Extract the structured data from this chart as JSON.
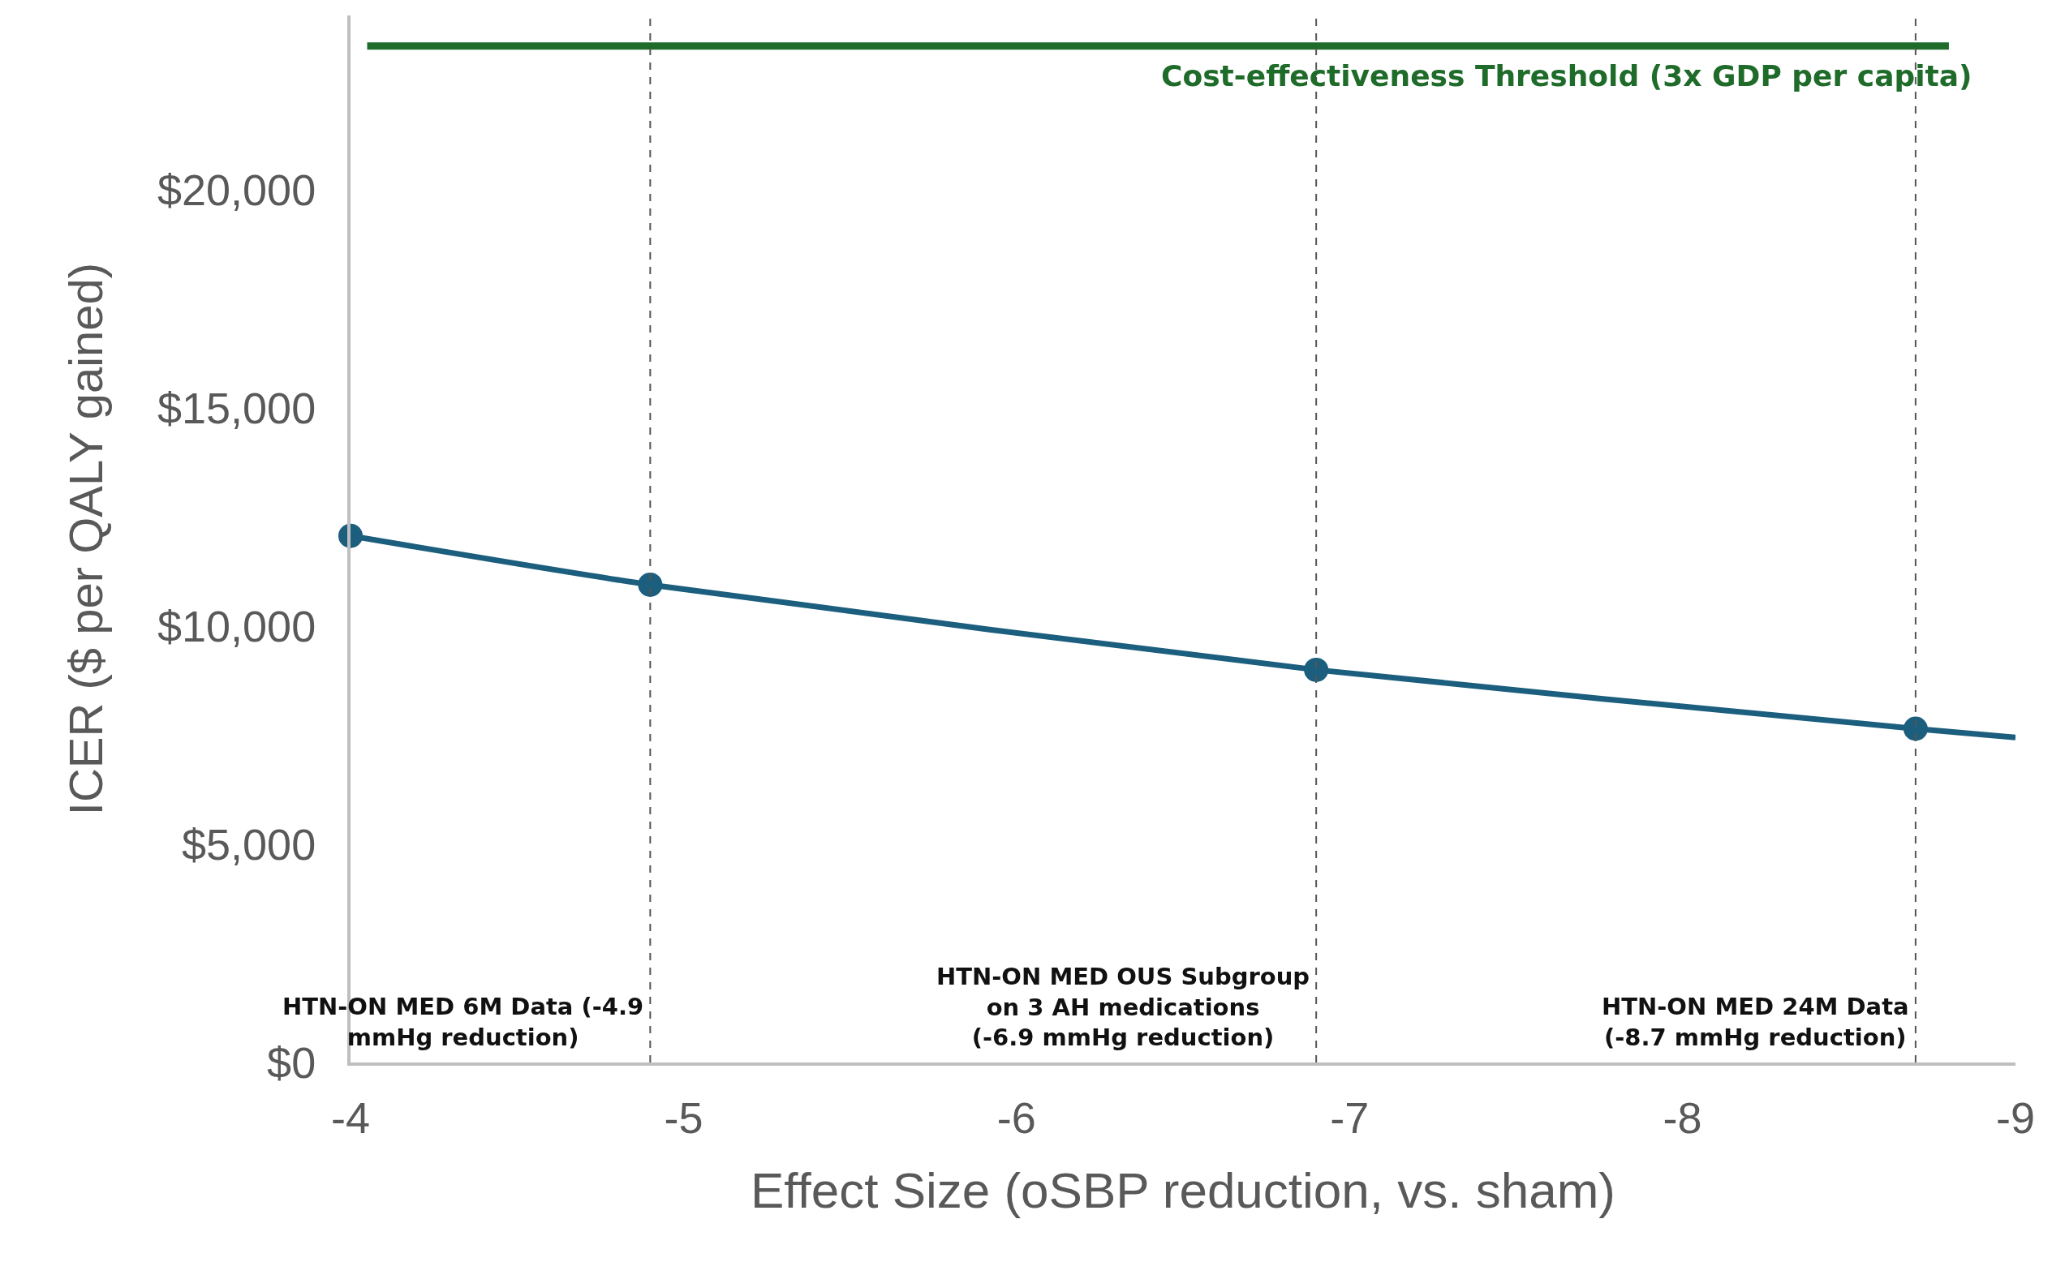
{
  "chart_data": {
    "type": "line",
    "xlabel": "Effect Size (oSBP reduction, vs. sham)",
    "ylabel": "ICER ($ per QALY gained)",
    "xlim": [
      -4,
      -9
    ],
    "xticks": [
      -4,
      -5,
      -6,
      -7,
      -8,
      -9
    ],
    "ylim": [
      0,
      24000
    ],
    "yticks": [
      {
        "value": 0,
        "label": "$0"
      },
      {
        "value": 5000,
        "label": "$5,000"
      },
      {
        "value": 10000,
        "label": "$10,000"
      },
      {
        "value": 15000,
        "label": "$15,000"
      },
      {
        "value": 20000,
        "label": "$20,000"
      }
    ],
    "grid": false,
    "line_style": "solid",
    "series": [
      {
        "type": "line",
        "marker": "none",
        "color": "#1b5e7e",
        "x": [
          -4,
          -4.9,
          -6.9,
          -8.7,
          -9
        ],
        "values": [
          12070,
          10950,
          9000,
          7650,
          7450
        ]
      },
      {
        "type": "scatter",
        "marker": "circle",
        "color": "#1b5e7e",
        "x": [
          -4,
          -4.9,
          -6.9,
          -8.7
        ],
        "values": [
          12070,
          10950,
          9000,
          7650
        ]
      }
    ],
    "ref_lines": [
      {
        "axis": "y",
        "value": 23300,
        "label": "Cost-effectiveness Threshold (3x GDP per capita)",
        "color": "#1e6b2a",
        "line_style": "solid"
      },
      {
        "axis": "x",
        "value": -4.9,
        "label": "HTN-ON MED 6M Data (-4.9 mmHg reduction)",
        "color": "#555555",
        "line_style": "dashed"
      },
      {
        "axis": "x",
        "value": -6.9,
        "label": "HTN-ON MED OUS Subgroup on 3 AH medications (-6.9 mmHg reduction)",
        "color": "#555555",
        "line_style": "dashed"
      },
      {
        "axis": "x",
        "value": -8.7,
        "label": "HTN-ON MED 24M Data (-8.7 mmHg reduction)",
        "color": "#555555",
        "line_style": "dashed"
      }
    ]
  }
}
